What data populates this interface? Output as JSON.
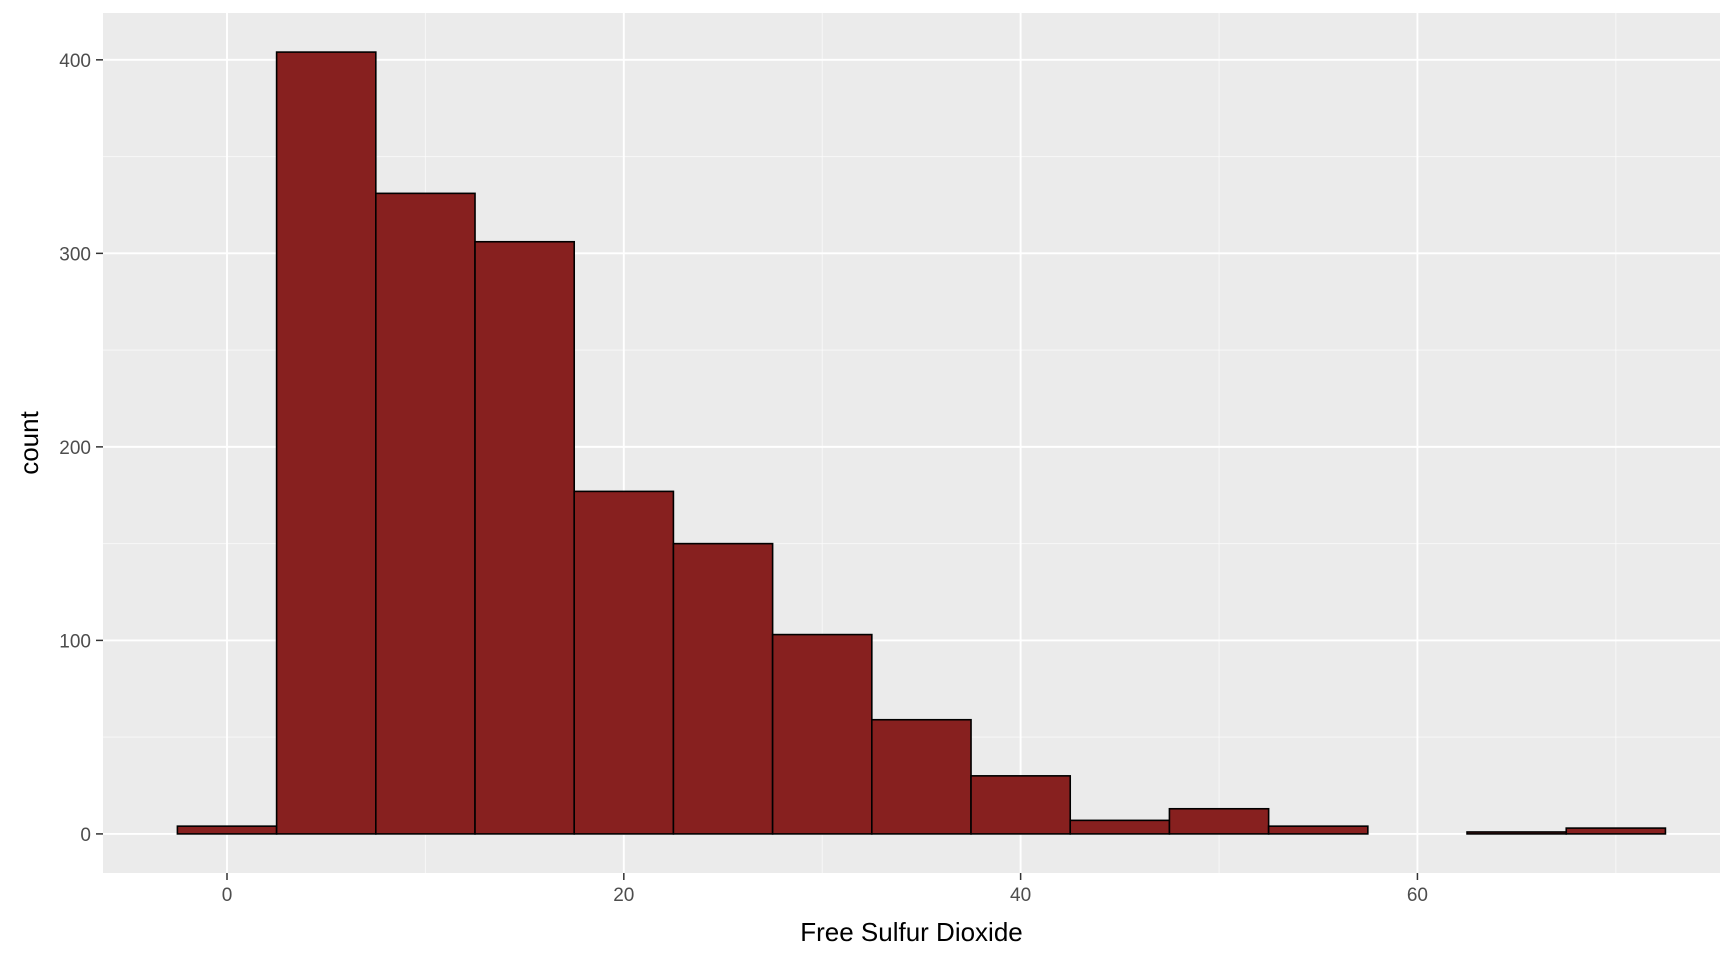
{
  "chart_data": {
    "type": "bar",
    "subtype": "histogram",
    "xlabel": "Free Sulfur Dioxide",
    "ylabel": "count",
    "bin_width": 5,
    "bins": [
      {
        "center": 0,
        "count": 4
      },
      {
        "center": 5,
        "count": 404
      },
      {
        "center": 10,
        "count": 331
      },
      {
        "center": 15,
        "count": 306
      },
      {
        "center": 20,
        "count": 177
      },
      {
        "center": 25,
        "count": 150
      },
      {
        "center": 30,
        "count": 103
      },
      {
        "center": 35,
        "count": 59
      },
      {
        "center": 40,
        "count": 30
      },
      {
        "center": 45,
        "count": 7
      },
      {
        "center": 50,
        "count": 13
      },
      {
        "center": 55,
        "count": 4
      },
      {
        "center": 60,
        "count": 0
      },
      {
        "center": 65,
        "count": 1
      },
      {
        "center": 70,
        "count": 3
      }
    ],
    "xlim": [
      -6.25,
      75.25
    ],
    "ylim": [
      -20.2,
      424.2
    ],
    "x_ticks": [
      0,
      20,
      40,
      60
    ],
    "y_ticks": [
      0,
      100,
      200,
      300,
      400
    ],
    "x_tick_labels": [
      "0",
      "20",
      "40",
      "60"
    ],
    "y_tick_labels": [
      "0",
      "100",
      "200",
      "300",
      "400"
    ],
    "grid": true,
    "legend": "none",
    "colors": {
      "bar_fill": "#87201f",
      "bar_outline": "#000000",
      "panel_background": "#ebebeb",
      "grid": "#ffffff"
    }
  }
}
